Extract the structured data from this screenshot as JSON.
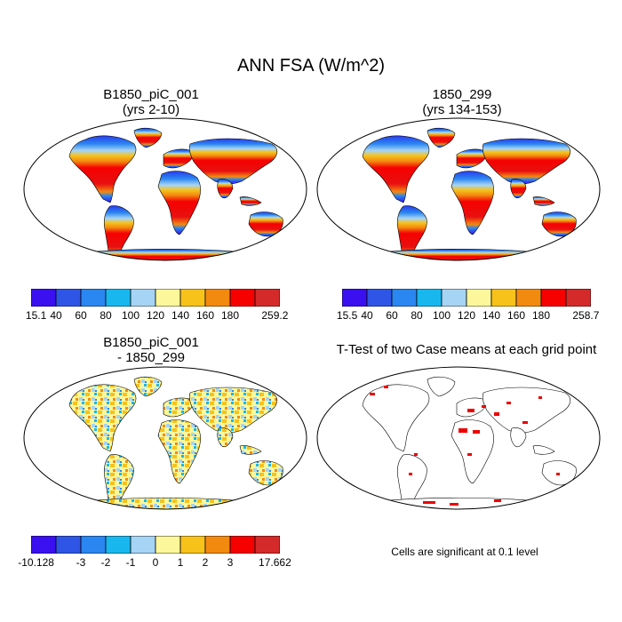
{
  "figure": {
    "title": "ANN FSA (W/m^2)"
  },
  "panels": [
    {
      "title_line1": "B1850_piC_001",
      "title_line2": "(yrs 2-10)",
      "colorbar": {
        "colors": [
          "#3a10f0",
          "#2f55e6",
          "#2a86f0",
          "#18b8ef",
          "#a6d4f4",
          "#fbf79a",
          "#f7c21a",
          "#f38a10",
          "#f60000",
          "#d52a2a"
        ],
        "ticks": [
          "15.1",
          "40",
          "60",
          "80",
          "100",
          "120",
          "140",
          "160",
          "180",
          "259.2"
        ]
      }
    },
    {
      "title_line1": "1850_299",
      "title_line2": "(yrs 134-153)",
      "colorbar": {
        "colors": [
          "#3a10f0",
          "#2f55e6",
          "#2a86f0",
          "#18b8ef",
          "#a6d4f4",
          "#fbf79a",
          "#f7c21a",
          "#f38a10",
          "#f60000",
          "#d52a2a"
        ],
        "ticks": [
          "15.5",
          "40",
          "60",
          "80",
          "100",
          "120",
          "140",
          "160",
          "180",
          "258.7"
        ]
      }
    },
    {
      "title_line1": "B1850_piC_001",
      "title_line2": "- 1850_299",
      "colorbar": {
        "colors": [
          "#3a10f0",
          "#2f55e6",
          "#2a86f0",
          "#18b8ef",
          "#a6d4f4",
          "#fbf79a",
          "#f7c21a",
          "#f38a10",
          "#f60000",
          "#d52a2a"
        ],
        "ticks": [
          "-10.128",
          "-3",
          "-2",
          "-1",
          "0",
          "1",
          "2",
          "3",
          "17.662"
        ]
      }
    },
    {
      "title_line1": "T-Test of two Case means at each grid point",
      "note": "Cells are significant at 0.1 level",
      "significance_color": "#ee0000"
    }
  ]
}
